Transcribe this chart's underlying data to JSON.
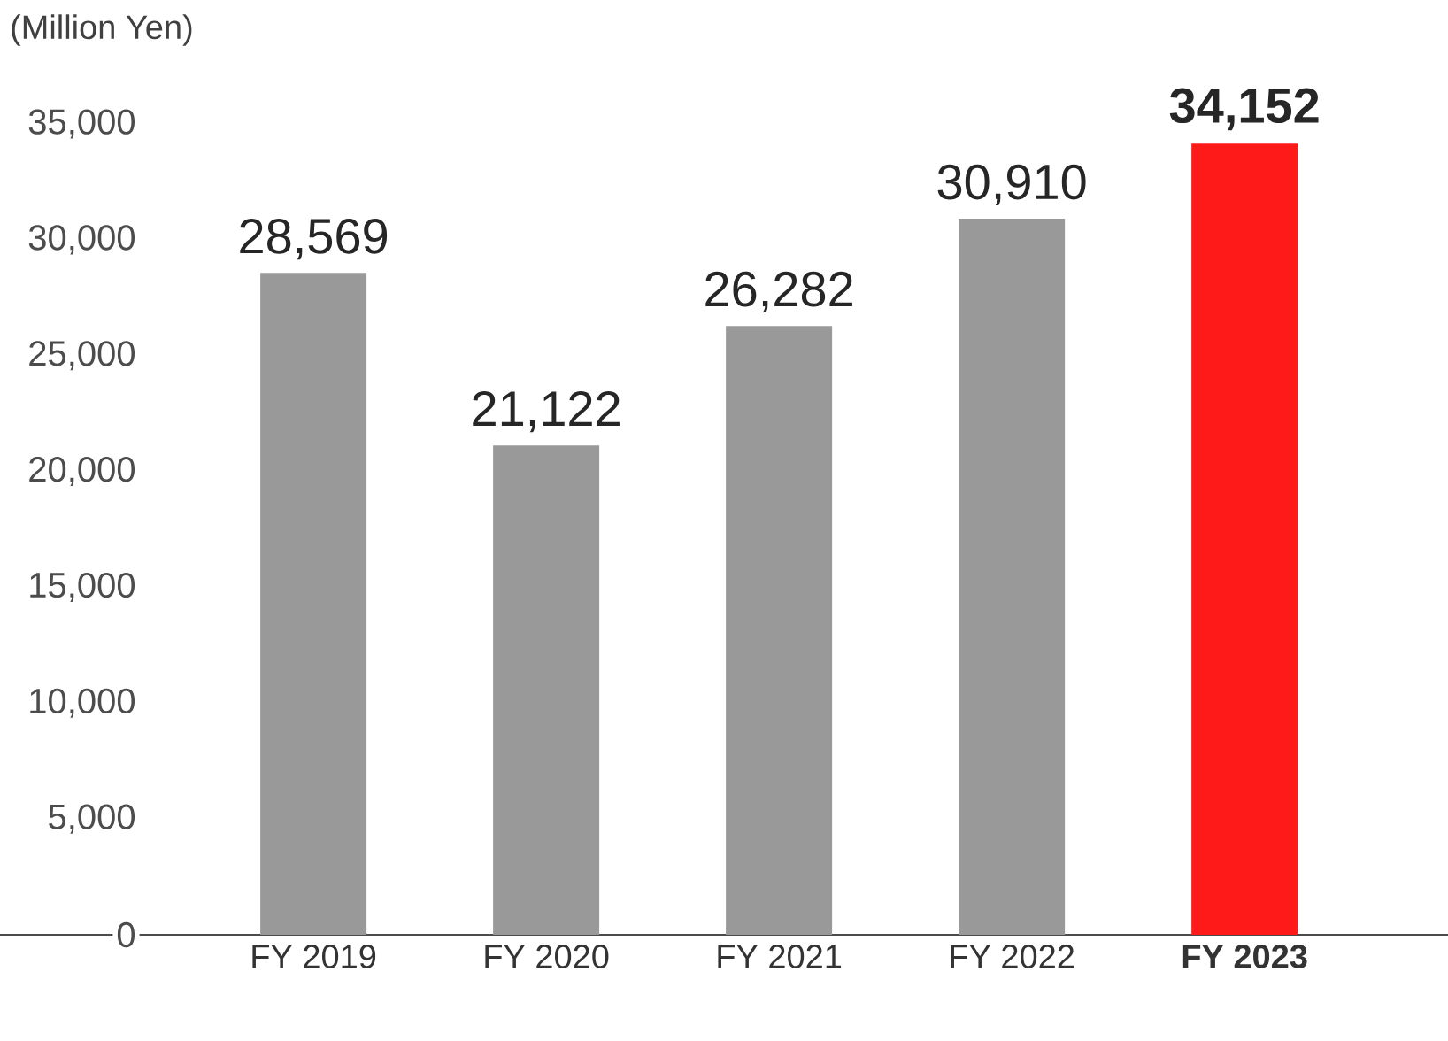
{
  "chart_data": {
    "type": "bar",
    "ylabel": "(Million Yen)",
    "categories": [
      "FY 2019",
      "FY 2020",
      "FY 2021",
      "FY 2022",
      "FY 2023"
    ],
    "values": [
      28569,
      21122,
      26282,
      30910,
      34152
    ],
    "value_labels": [
      "28,569",
      "21,122",
      "26,282",
      "30,910",
      "34,152"
    ],
    "colors": [
      "#999999",
      "#999999",
      "#999999",
      "#999999",
      "#ff1a1a"
    ],
    "ylim": [
      0,
      35000
    ],
    "yticks": [
      {
        "value": 0,
        "label": "0"
      },
      {
        "value": 5000,
        "label": "5,000"
      },
      {
        "value": 10000,
        "label": "10,000"
      },
      {
        "value": 15000,
        "label": "15,000"
      },
      {
        "value": 20000,
        "label": "20,000"
      },
      {
        "value": 25000,
        "label": "25,000"
      },
      {
        "value": 30000,
        "label": "30,000"
      },
      {
        "value": 35000,
        "label": "35,000"
      }
    ],
    "grid": false
  }
}
